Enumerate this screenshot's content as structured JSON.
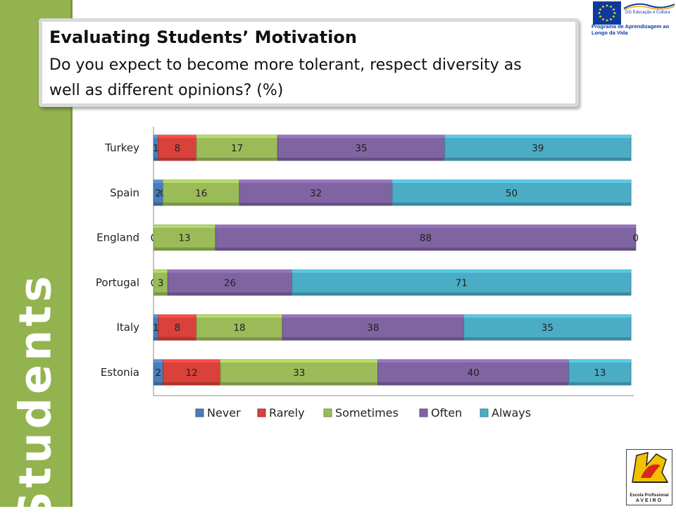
{
  "slide": {
    "title": "Evaluating Students’ Motivation",
    "subtitle": "Do you expect to become more tolerant, respect diversity as well as different opinions? (%)",
    "side_word": "Students"
  },
  "logos": {
    "eu_line1": "DG Educação e Cultura",
    "eu_line2": "Programa de Aprendizagem ao Longo da Vida",
    "school_line1": "Escola Profissional",
    "school_line2": "AVEIRO"
  },
  "chart_data": {
    "type": "bar",
    "orientation": "horizontal",
    "stacked": true,
    "categories": [
      "Turkey",
      "Spain",
      "England",
      "Portugal",
      "Italy",
      "Estonia"
    ],
    "series": [
      {
        "name": "Never",
        "values": [
          1,
          2,
          0,
          0,
          1,
          2
        ],
        "color": "#4a7ebb"
      },
      {
        "name": "Rarely",
        "values": [
          8,
          0,
          0,
          0,
          8,
          12
        ],
        "color": "#d9413a"
      },
      {
        "name": "Sometimes",
        "values": [
          17,
          16,
          13,
          3,
          18,
          33
        ],
        "color": "#9bbb59"
      },
      {
        "name": "Often",
        "values": [
          35,
          32,
          88,
          26,
          38,
          40
        ],
        "color": "#8064a2"
      },
      {
        "name": "Always",
        "values": [
          39,
          50,
          0,
          71,
          35,
          13
        ],
        "color": "#4bacc6"
      }
    ],
    "legend_position": "bottom",
    "grid": false
  }
}
